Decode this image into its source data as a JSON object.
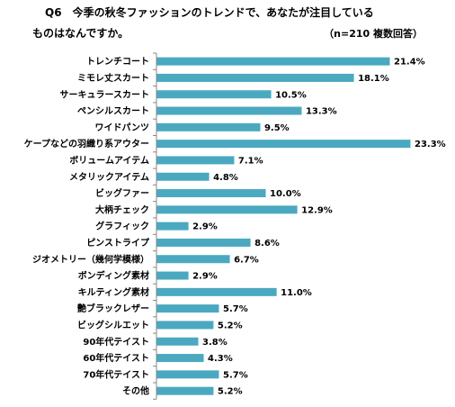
{
  "header": {
    "question_no": "Q6",
    "question_line1": "今季の秋冬ファッションのトレンドで、あなたが注目している",
    "question_line2": "ものはなんですか。",
    "sample_note": "（n=210 複数回答）"
  },
  "chart_data": {
    "type": "bar",
    "orientation": "horizontal",
    "bar_color": "#4aa9c0",
    "categories": [
      "トレンチコート",
      "ミモレ丈スカート",
      "サーキュラースカート",
      "ペンシルスカート",
      "ワイドパンツ",
      "ケープなどの羽織り系アウター",
      "ボリュームアイテム",
      "メタリックアイテム",
      "ビッグファー",
      "大柄チェック",
      "グラフィック",
      "ピンストライプ",
      "ジオメトリー（幾何学模様）",
      "ボンディング素材",
      "キルティング素材",
      "艶ブラックレザー",
      "ビッグシルエット",
      "90年代テイスト",
      "60年代テイスト",
      "70年代テイスト",
      "その他"
    ],
    "values": [
      21.4,
      18.1,
      10.5,
      13.3,
      9.5,
      23.3,
      7.1,
      4.8,
      10.0,
      12.9,
      2.9,
      8.6,
      6.7,
      2.9,
      11.0,
      5.7,
      5.2,
      3.8,
      4.3,
      5.7,
      5.2
    ],
    "value_labels": [
      "21.4%",
      "18.1%",
      "10.5%",
      "13.3%",
      "9.5%",
      "23.3%",
      "7.1%",
      "4.8%",
      "10.0%",
      "12.9%",
      "2.9%",
      "8.6%",
      "6.7%",
      "2.9%",
      "11.0%",
      "5.7%",
      "5.2%",
      "3.8%",
      "4.3%",
      "5.7%",
      "5.2%"
    ],
    "xlim": [
      0,
      25
    ],
    "grid": false,
    "legend": "none"
  }
}
